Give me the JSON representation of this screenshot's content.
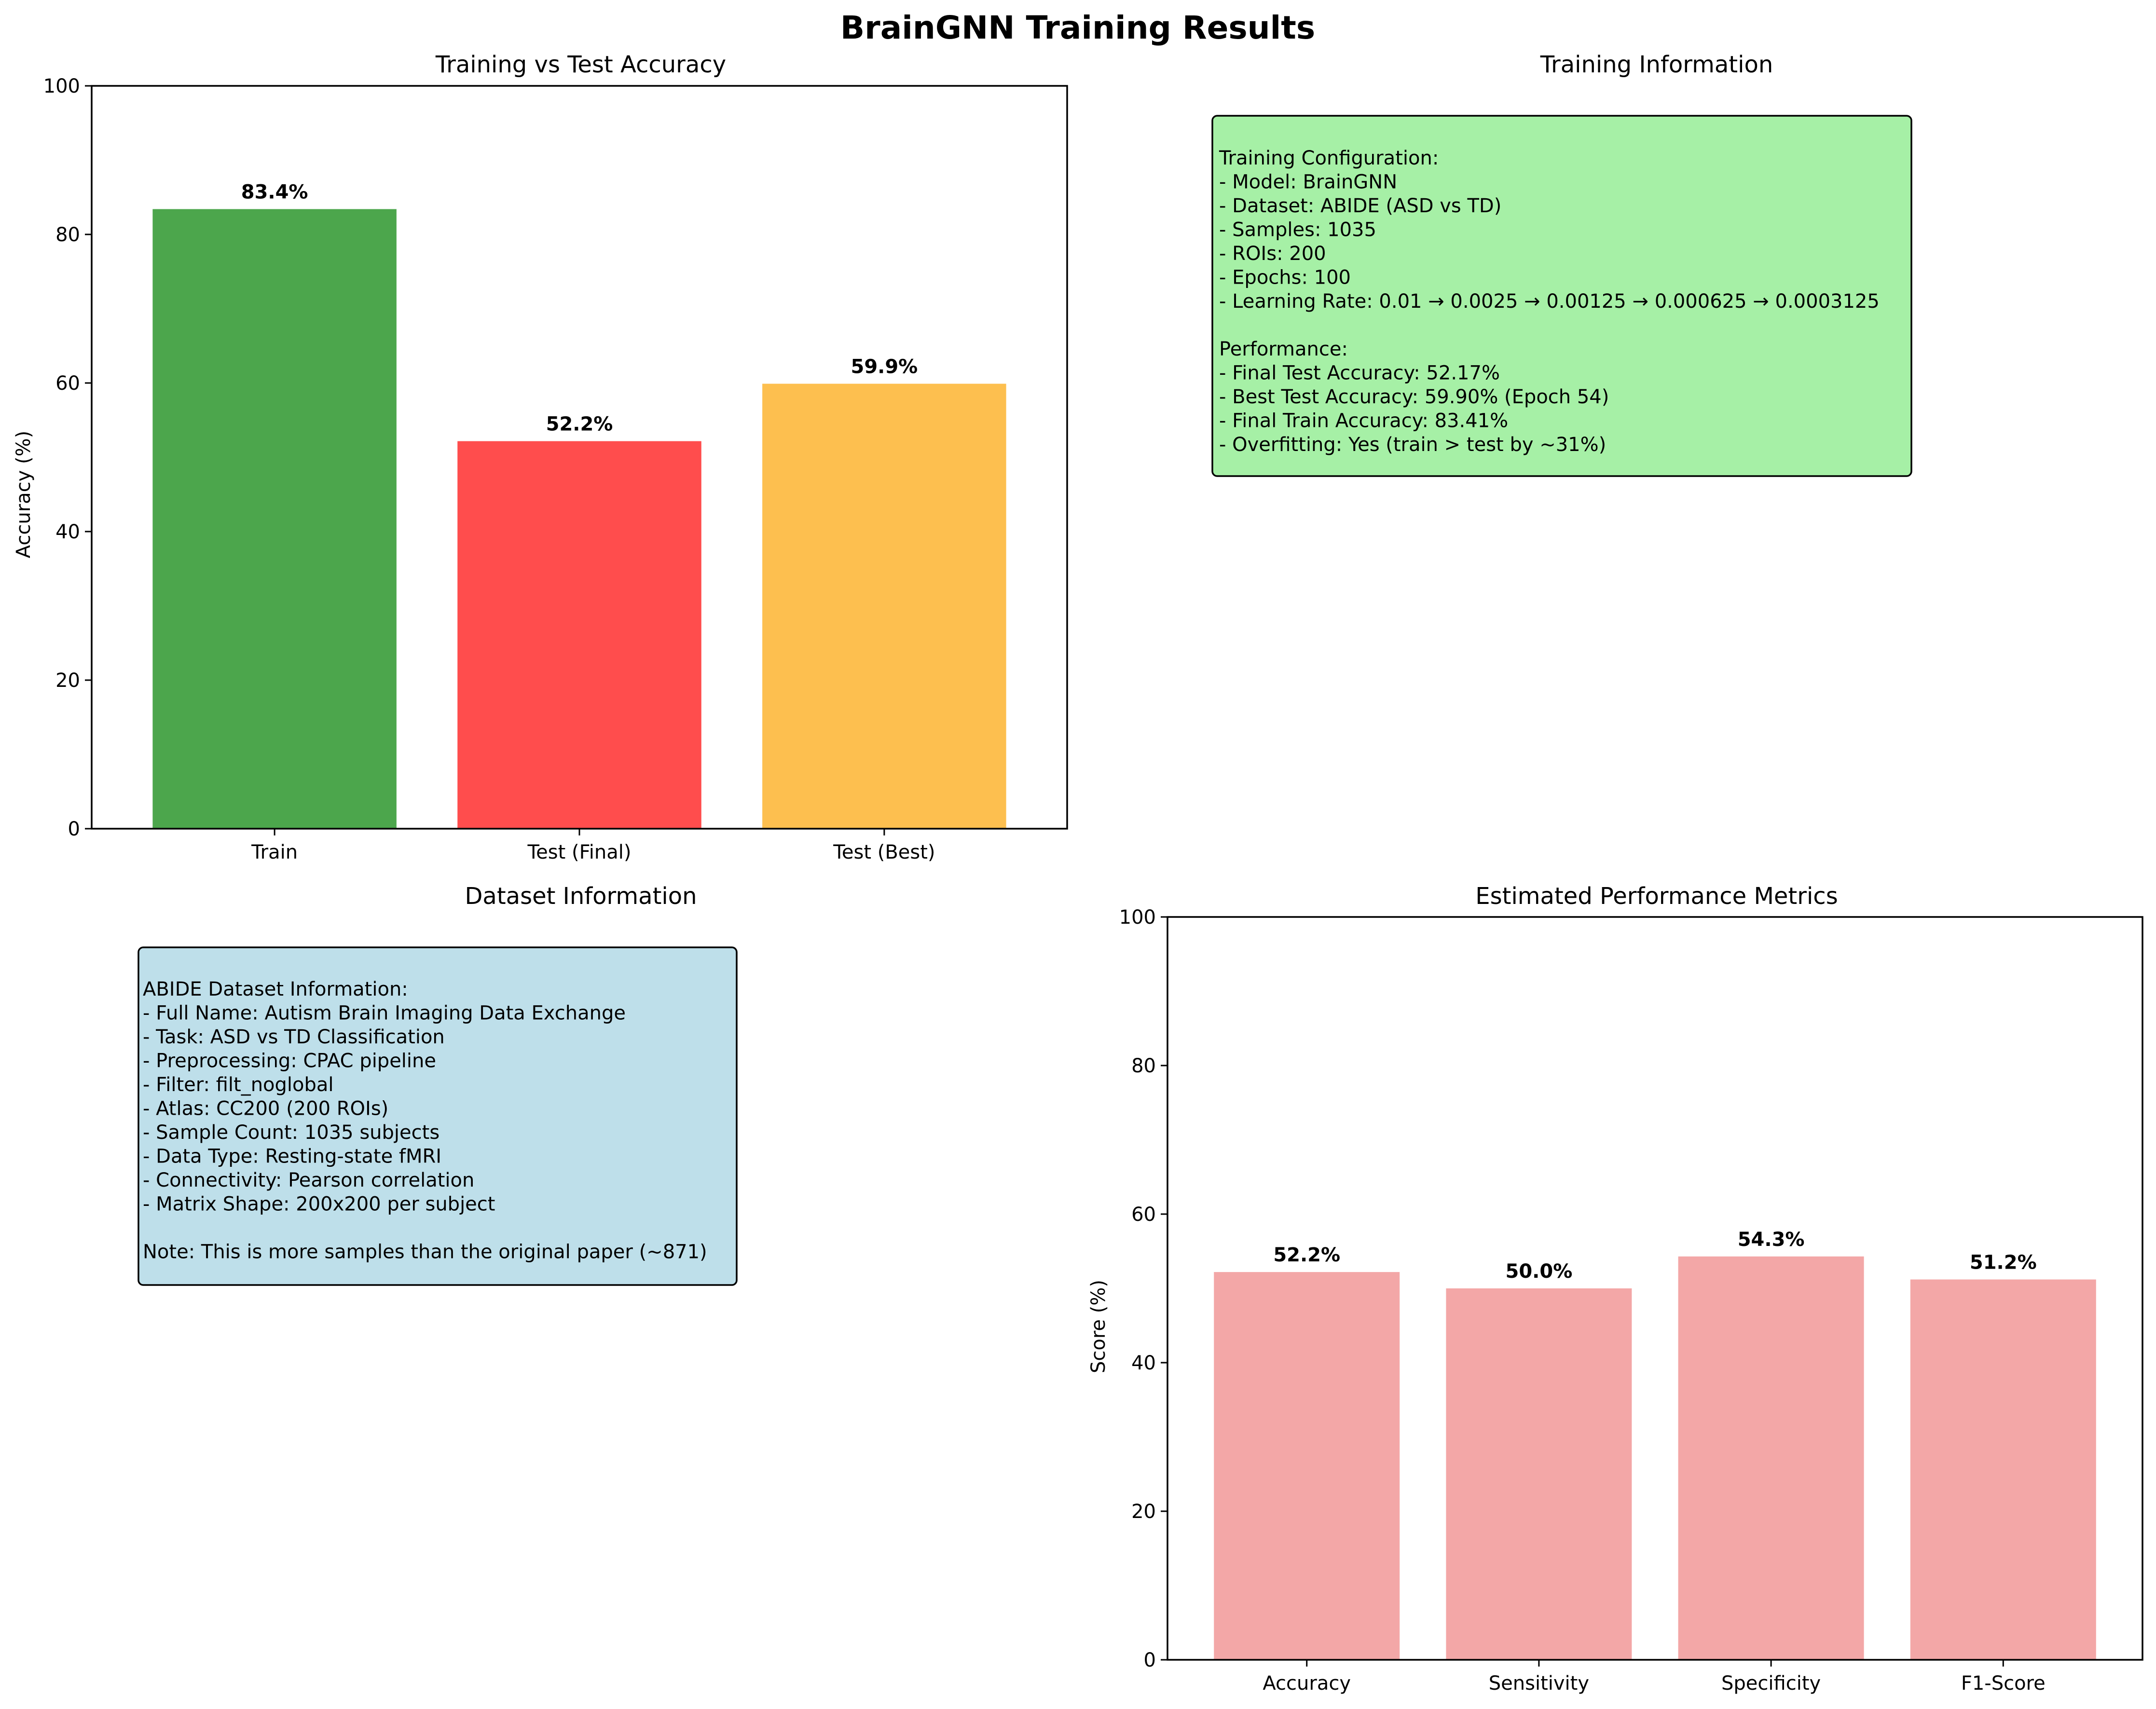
{
  "figure_title": "BrainGNN Training Results",
  "chart_data": [
    {
      "type": "bar",
      "title": "Training vs Test Accuracy",
      "xlabel": "",
      "ylabel": "Accuracy (%)",
      "categories": [
        "Train",
        "Test (Final)",
        "Test (Best)"
      ],
      "values": [
        83.41,
        52.17,
        59.9
      ],
      "value_labels": [
        "83.4%",
        "52.2%",
        "59.9%"
      ],
      "colors": [
        "#4ca64c",
        "#ff4d4d",
        "#fdbf4f"
      ],
      "ylim": [
        0,
        100
      ],
      "yticks": [
        0,
        20,
        40,
        60,
        80,
        100
      ],
      "grid": false
    },
    {
      "type": "bar",
      "title": "Estimated Performance Metrics",
      "xlabel": "",
      "ylabel": "Score (%)",
      "categories": [
        "Accuracy",
        "Sensitivity",
        "Specificity",
        "F1-Score"
      ],
      "values": [
        52.2,
        50.0,
        54.3,
        51.2
      ],
      "value_labels": [
        "52.2%",
        "50.0%",
        "54.3%",
        "51.2%"
      ],
      "colors": [
        "#f3a7a7",
        "#f3a7a7",
        "#f3a7a7",
        "#f3a7a7"
      ],
      "ylim": [
        0,
        100
      ],
      "yticks": [
        0,
        20,
        40,
        60,
        80,
        100
      ],
      "grid": false
    }
  ],
  "training_info": {
    "title": "Training Information",
    "box_color": "#a6f0a6",
    "lines": [
      "Training Configuration:",
      "- Model: BrainGNN",
      "- Dataset: ABIDE (ASD vs TD)",
      "- Samples: 1035",
      "- ROIs: 200",
      "- Epochs: 100",
      "- Learning Rate: 0.01 → 0.0025 → 0.00125 → 0.000625 → 0.0003125",
      "",
      "Performance:",
      "- Final Test Accuracy: 52.17%",
      "- Best Test Accuracy: 59.90% (Epoch 54)",
      "- Final Train Accuracy: 83.41%",
      "- Overfitting: Yes (train > test by ~31%)"
    ]
  },
  "dataset_info": {
    "title": "Dataset Information",
    "box_color": "#bedfea",
    "lines": [
      "ABIDE Dataset Information:",
      "- Full Name: Autism Brain Imaging Data Exchange",
      "- Task: ASD vs TD Classification",
      "- Preprocessing: CPAC pipeline",
      "- Filter: filt_noglobal",
      "- Atlas: CC200 (200 ROIs)",
      "- Sample Count: 1035 subjects",
      "- Data Type: Resting-state fMRI",
      "- Connectivity: Pearson correlation",
      "- Matrix Shape: 200x200 per subject",
      "",
      "Note: This is more samples than the original paper (~871)"
    ]
  }
}
